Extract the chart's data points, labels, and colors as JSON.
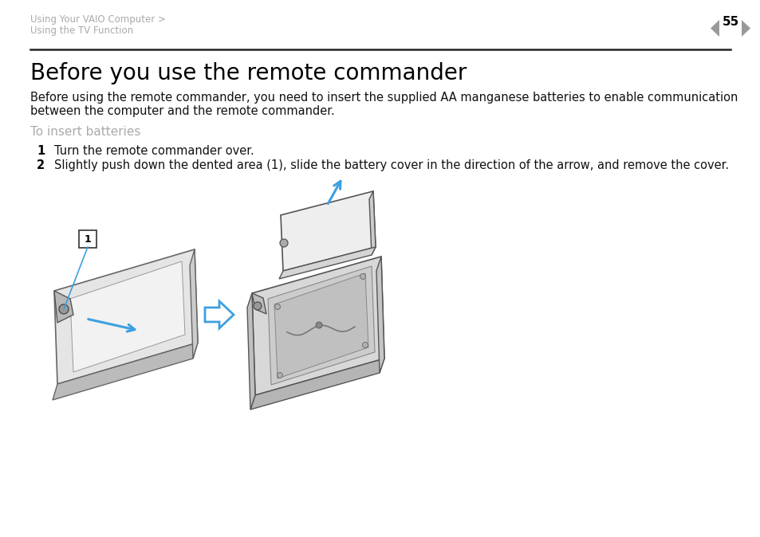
{
  "bg_color": "#ffffff",
  "header_line1": "Using Your VAIO Computer >",
  "header_line2": "Using the TV Function",
  "page_number": "55",
  "title": "Before you use the remote commander",
  "body_line1": "Before using the remote commander, you need to insert the supplied AA manganese batteries to enable communication",
  "body_line2": "between the computer and the remote commander.",
  "subheading": "To insert batteries",
  "step1_num": "1",
  "step1_text": "Turn the remote commander over.",
  "step2_num": "2",
  "step2_text": "Slightly push down the dented area (1), slide the battery cover in the direction of the arrow, and remove the cover.",
  "header_color": "#aaaaaa",
  "title_color": "#000000",
  "body_color": "#111111",
  "subheading_color": "#aaaaaa",
  "divider_color": "#222222",
  "arrow_color": "#3ca0e0",
  "nav_arrow_color": "#999999",
  "remote_top_color": "#e8e8e8",
  "remote_side_color": "#c0c0c0",
  "remote_bottom_color": "#b0b0b0",
  "remote_inner_color": "#f0f0f0",
  "remote_inner2_color": "#d8d8d8",
  "cover_top_color": "#efefef",
  "cover_side_color": "#cccccc",
  "latch_color": "#bbbbbb",
  "title_fontsize": 20,
  "body_fontsize": 10.5,
  "subheading_fontsize": 11,
  "step_fontsize": 10.5,
  "header_fontsize": 8.5
}
